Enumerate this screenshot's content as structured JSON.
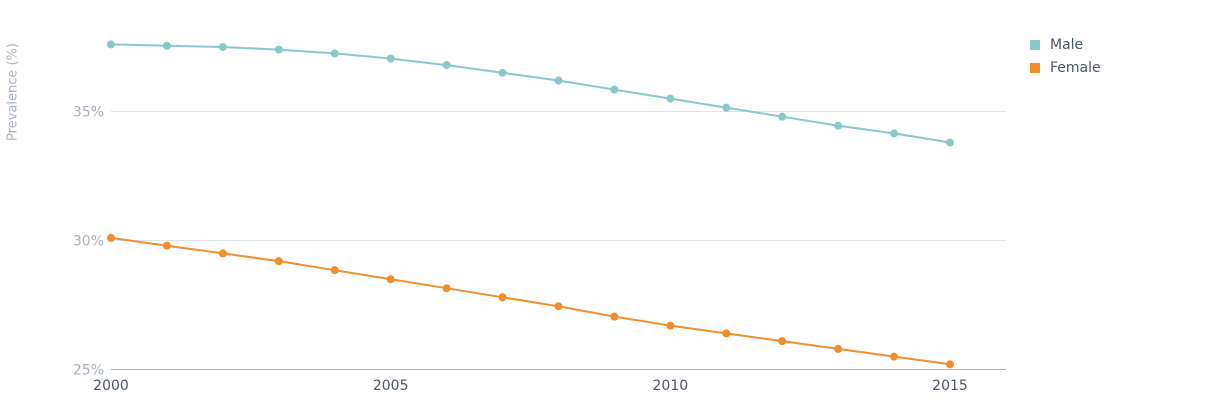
{
  "chart_data": {
    "type": "line",
    "title": "",
    "xlabel": "",
    "ylabel": "Prevalence (%)",
    "x": [
      2000,
      2001,
      2002,
      2003,
      2004,
      2005,
      2006,
      2007,
      2008,
      2009,
      2010,
      2011,
      2012,
      2013,
      2014,
      2015
    ],
    "x_ticks": [
      "2000",
      "2005",
      "2010",
      "2015"
    ],
    "y_ticks": [
      "25%",
      "30%",
      "35%"
    ],
    "ylim": [
      25,
      37.6
    ],
    "grid": "horizontal",
    "legend_position": "top-right",
    "series": [
      {
        "name": "Male",
        "color": "#88c8c8",
        "values": [
          37.6,
          37.55,
          37.5,
          37.4,
          37.25,
          37.05,
          36.8,
          36.5,
          36.2,
          35.85,
          35.5,
          35.15,
          34.8,
          34.45,
          34.15,
          33.8
        ]
      },
      {
        "name": "Female",
        "color": "#f28d2d",
        "values": [
          30.1,
          29.8,
          29.5,
          29.2,
          28.85,
          28.5,
          28.15,
          27.8,
          27.45,
          27.05,
          26.7,
          26.4,
          26.1,
          25.8,
          25.5,
          25.2
        ]
      }
    ]
  }
}
